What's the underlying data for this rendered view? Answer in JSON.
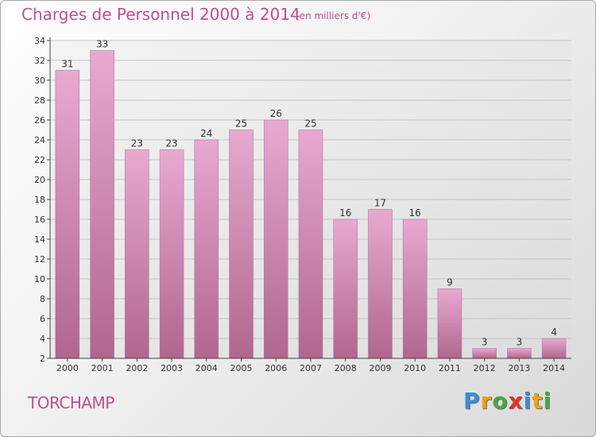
{
  "title": "Charges de Personnel 2000 à 2014",
  "subtitle": "(en milliers d'€)",
  "town": "TORCHAMP",
  "logo": {
    "letters": [
      {
        "ch": "P",
        "color": "#3b8fd6"
      },
      {
        "ch": "r",
        "color": "#e9a21b"
      },
      {
        "ch": "o",
        "color": "#4aa844"
      },
      {
        "ch": "x",
        "color": "#e2342b"
      },
      {
        "ch": "i",
        "color": "#3b8fd6"
      },
      {
        "ch": "t",
        "color": "#e9a21b"
      },
      {
        "ch": "i",
        "color": "#4aa844"
      }
    ]
  },
  "colors": {
    "accent": "#c0508a",
    "bar_light": "#e8a9d0",
    "bar_dark": "#b0668f"
  },
  "chart_data": {
    "type": "bar",
    "categories": [
      "2000",
      "2001",
      "2002",
      "2003",
      "2004",
      "2005",
      "2006",
      "2007",
      "2008",
      "2009",
      "2010",
      "2011",
      "2012",
      "2013",
      "2014"
    ],
    "values": [
      31,
      33,
      23,
      23,
      24,
      25,
      26,
      25,
      16,
      17,
      16,
      9,
      3,
      3,
      4
    ],
    "ylim": [
      2,
      34
    ],
    "yticks": [
      2,
      4,
      6,
      8,
      10,
      12,
      14,
      16,
      18,
      20,
      22,
      24,
      26,
      28,
      30,
      32,
      34
    ],
    "grid": true
  }
}
